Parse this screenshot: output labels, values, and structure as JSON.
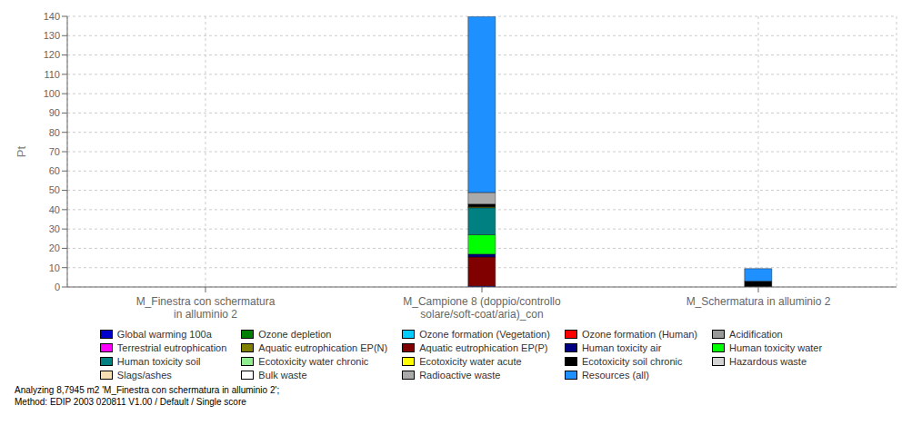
{
  "chart_data": {
    "type": "bar",
    "stacked": true,
    "grid": true,
    "legend": "bottom",
    "ylabel": "Pt",
    "categories": [
      "M_Finestra con schermatura\nin alluminio 2",
      "M_Campione 8 (doppio/controllo\nsolare/soft-coat/aria)_con",
      "M_Schermatura in alluminio 2"
    ],
    "ylim": [
      0,
      140
    ],
    "yticks": [
      0,
      10,
      20,
      30,
      40,
      50,
      60,
      70,
      80,
      90,
      100,
      110,
      120,
      130,
      140
    ],
    "series": [
      {
        "name": "Global warming 100a",
        "color": "#0000CC",
        "values": [
          0,
          0.5,
          0
        ]
      },
      {
        "name": "Ozone depletion",
        "color": "#008000",
        "values": [
          0,
          0,
          0
        ]
      },
      {
        "name": "Ozone formation (Vegetation)",
        "color": "#00CCFF",
        "values": [
          0,
          0,
          0
        ]
      },
      {
        "name": "Ozone formation (Human)",
        "color": "#FF0000",
        "values": [
          0,
          0,
          0
        ]
      },
      {
        "name": "Acidification",
        "color": "#999999",
        "values": [
          0,
          0,
          0
        ]
      },
      {
        "name": "Terrestrial eutrophication",
        "color": "#FF00FF",
        "values": [
          0,
          0,
          0
        ]
      },
      {
        "name": "Aquatic eutrophication EP(N)",
        "color": "#808000",
        "values": [
          0,
          0,
          0
        ]
      },
      {
        "name": "Aquatic eutrophication EP(P)",
        "color": "#800000",
        "values": [
          0,
          15.0,
          0
        ]
      },
      {
        "name": "Human toxicity air",
        "color": "#000080",
        "values": [
          0,
          1.5,
          0
        ]
      },
      {
        "name": "Human toxicity water",
        "color": "#00FF00",
        "values": [
          0,
          10.0,
          0
        ]
      },
      {
        "name": "Human toxicity soil",
        "color": "#008080",
        "values": [
          0,
          14.0,
          0
        ]
      },
      {
        "name": "Ecotoxicity water chronic",
        "color": "#90EE90",
        "values": [
          0,
          0.1,
          0
        ]
      },
      {
        "name": "Ecotoxicity water acute",
        "color": "#FFFF00",
        "values": [
          0,
          0.3,
          0
        ]
      },
      {
        "name": "Ecotoxicity soil chronic",
        "color": "#000000",
        "values": [
          0,
          1.5,
          3.0
        ]
      },
      {
        "name": "Hazardous waste",
        "color": "#D3D3D3",
        "values": [
          0,
          0,
          0
        ]
      },
      {
        "name": "Slags/ashes",
        "color": "#F5DEB3",
        "values": [
          0,
          0,
          0
        ]
      },
      {
        "name": "Bulk waste",
        "color": "#FFFFFF",
        "values": [
          0,
          0,
          0
        ]
      },
      {
        "name": "Radioactive waste",
        "color": "#AAAAAA",
        "values": [
          0,
          6.0,
          0
        ]
      },
      {
        "name": "Resources (all)",
        "color": "#1E90FF",
        "values": [
          0,
          91.0,
          6.5
        ]
      }
    ],
    "annotations": [
      "Analyzing 8,7945 m2 'M_Finestra con schermatura in alluminio 2';",
      "Method: EDIP 2003 020811 V1.00 / Default / Single score"
    ]
  }
}
